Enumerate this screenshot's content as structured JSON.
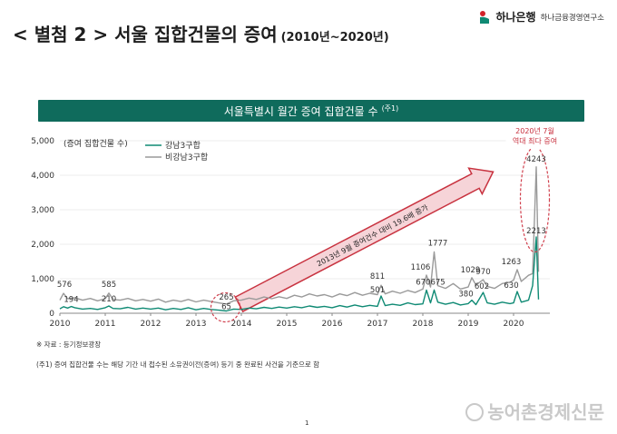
{
  "header": {
    "title": "< 별첨 2 > 서울 집합건물의 증여",
    "subtitle": "(2010년~2020년)",
    "logo_bank": "하나은행",
    "logo_institute": "하나금융경영연구소"
  },
  "banner": {
    "text": "서울특별시 월간 증여 집합건물 수",
    "note": "(주1)"
  },
  "chart_data": {
    "type": "line",
    "ylabel": "(증여 집합건물 수)",
    "ylim": [
      0,
      5000
    ],
    "yticks": [
      "0",
      "1,000",
      "2,000",
      "3,000",
      "4,000",
      "5,000"
    ],
    "xlim": [
      2010,
      2020.8
    ],
    "xticks": [
      "2010",
      "2011",
      "2012",
      "2013",
      "2014",
      "2015",
      "2016",
      "2017",
      "2018",
      "2019",
      "2020"
    ],
    "legend_position": "top-left",
    "series": [
      {
        "name": "강남3구합",
        "color": "#0f8a74",
        "points": [
          [
            2010.0,
            130
          ],
          [
            2010.08,
            190
          ],
          [
            2010.17,
            150
          ],
          [
            2010.25,
            194
          ],
          [
            2010.33,
            160
          ],
          [
            2010.5,
            120
          ],
          [
            2010.67,
            140
          ],
          [
            2010.83,
            110
          ],
          [
            2011.0,
            160
          ],
          [
            2011.08,
            210
          ],
          [
            2011.17,
            140
          ],
          [
            2011.33,
            130
          ],
          [
            2011.5,
            170
          ],
          [
            2011.67,
            120
          ],
          [
            2011.83,
            150
          ],
          [
            2012.0,
            120
          ],
          [
            2012.17,
            150
          ],
          [
            2012.33,
            100
          ],
          [
            2012.5,
            140
          ],
          [
            2012.67,
            110
          ],
          [
            2012.83,
            160
          ],
          [
            2013.0,
            100
          ],
          [
            2013.17,
            140
          ],
          [
            2013.33,
            110
          ],
          [
            2013.5,
            90
          ],
          [
            2013.67,
            65
          ],
          [
            2013.83,
            120
          ],
          [
            2014.0,
            110
          ],
          [
            2014.17,
            150
          ],
          [
            2014.33,
            130
          ],
          [
            2014.5,
            170
          ],
          [
            2014.67,
            140
          ],
          [
            2014.83,
            180
          ],
          [
            2015.0,
            150
          ],
          [
            2015.17,
            190
          ],
          [
            2015.33,
            160
          ],
          [
            2015.5,
            210
          ],
          [
            2015.67,
            170
          ],
          [
            2015.83,
            200
          ],
          [
            2016.0,
            160
          ],
          [
            2016.17,
            220
          ],
          [
            2016.33,
            180
          ],
          [
            2016.5,
            240
          ],
          [
            2016.67,
            190
          ],
          [
            2016.83,
            230
          ],
          [
            2017.0,
            200
          ],
          [
            2017.08,
            501
          ],
          [
            2017.17,
            220
          ],
          [
            2017.33,
            260
          ],
          [
            2017.5,
            230
          ],
          [
            2017.67,
            300
          ],
          [
            2017.83,
            250
          ],
          [
            2018.0,
            270
          ],
          [
            2018.08,
            670
          ],
          [
            2018.17,
            300
          ],
          [
            2018.25,
            675
          ],
          [
            2018.33,
            320
          ],
          [
            2018.5,
            260
          ],
          [
            2018.67,
            310
          ],
          [
            2018.83,
            240
          ],
          [
            2019.0,
            280
          ],
          [
            2019.08,
            380
          ],
          [
            2019.17,
            250
          ],
          [
            2019.33,
            602
          ],
          [
            2019.42,
            300
          ],
          [
            2019.58,
            260
          ],
          [
            2019.75,
            320
          ],
          [
            2019.92,
            280
          ],
          [
            2020.0,
            300
          ],
          [
            2020.08,
            630
          ],
          [
            2020.17,
            320
          ],
          [
            2020.33,
            380
          ],
          [
            2020.42,
            800
          ],
          [
            2020.5,
            2213
          ],
          [
            2020.55,
            400
          ]
        ]
      },
      {
        "name": "비강남3구합",
        "color": "#9a9a9a",
        "points": [
          [
            2010.0,
            380
          ],
          [
            2010.08,
            576
          ],
          [
            2010.17,
            420
          ],
          [
            2010.33,
            450
          ],
          [
            2010.5,
            380
          ],
          [
            2010.67,
            430
          ],
          [
            2010.83,
            360
          ],
          [
            2011.0,
            420
          ],
          [
            2011.08,
            585
          ],
          [
            2011.17,
            400
          ],
          [
            2011.33,
            380
          ],
          [
            2011.5,
            430
          ],
          [
            2011.67,
            360
          ],
          [
            2011.83,
            400
          ],
          [
            2012.0,
            350
          ],
          [
            2012.17,
            410
          ],
          [
            2012.33,
            320
          ],
          [
            2012.5,
            380
          ],
          [
            2012.67,
            340
          ],
          [
            2012.83,
            400
          ],
          [
            2013.0,
            330
          ],
          [
            2013.17,
            380
          ],
          [
            2013.33,
            340
          ],
          [
            2013.5,
            300
          ],
          [
            2013.67,
            265
          ],
          [
            2013.83,
            360
          ],
          [
            2014.0,
            380
          ],
          [
            2014.17,
            440
          ],
          [
            2014.33,
            400
          ],
          [
            2014.5,
            470
          ],
          [
            2014.67,
            420
          ],
          [
            2014.83,
            480
          ],
          [
            2015.0,
            430
          ],
          [
            2015.17,
            520
          ],
          [
            2015.33,
            470
          ],
          [
            2015.5,
            560
          ],
          [
            2015.67,
            500
          ],
          [
            2015.83,
            540
          ],
          [
            2016.0,
            470
          ],
          [
            2016.17,
            560
          ],
          [
            2016.33,
            510
          ],
          [
            2016.5,
            600
          ],
          [
            2016.67,
            520
          ],
          [
            2016.83,
            580
          ],
          [
            2017.0,
            540
          ],
          [
            2017.08,
            811
          ],
          [
            2017.17,
            560
          ],
          [
            2017.33,
            640
          ],
          [
            2017.5,
            580
          ],
          [
            2017.67,
            660
          ],
          [
            2017.83,
            600
          ],
          [
            2018.0,
            700
          ],
          [
            2018.08,
            1106
          ],
          [
            2018.17,
            760
          ],
          [
            2018.25,
            1777
          ],
          [
            2018.33,
            800
          ],
          [
            2018.5,
            720
          ],
          [
            2018.67,
            860
          ],
          [
            2018.83,
            700
          ],
          [
            2019.0,
            760
          ],
          [
            2019.08,
            1029
          ],
          [
            2019.17,
            820
          ],
          [
            2019.33,
            970
          ],
          [
            2019.42,
            780
          ],
          [
            2019.58,
            720
          ],
          [
            2019.75,
            860
          ],
          [
            2019.92,
            900
          ],
          [
            2020.0,
            960
          ],
          [
            2020.08,
            1263
          ],
          [
            2020.17,
            920
          ],
          [
            2020.33,
            1100
          ],
          [
            2020.42,
            1150
          ],
          [
            2020.5,
            4243
          ],
          [
            2020.55,
            1200
          ]
        ]
      }
    ],
    "labels": [
      {
        "x": 2010.1,
        "y": 576,
        "text": "576",
        "dy": -7
      },
      {
        "x": 2010.25,
        "y": 194,
        "text": "194",
        "dy": -5
      },
      {
        "x": 2011.08,
        "y": 585,
        "text": "585",
        "dy": -7
      },
      {
        "x": 2011.08,
        "y": 210,
        "text": "210",
        "dy": -5
      },
      {
        "x": 2013.67,
        "y": 265,
        "text": "265",
        "dy": -5
      },
      {
        "x": 2013.67,
        "y": 65,
        "text": "65",
        "dy": -2
      },
      {
        "x": 2017.0,
        "y": 811,
        "text": "811",
        "dy": -7
      },
      {
        "x": 2017.0,
        "y": 501,
        "text": "501",
        "dy": -4
      },
      {
        "x": 2017.95,
        "y": 1106,
        "text": "1106",
        "dy": -6
      },
      {
        "x": 2018.33,
        "y": 1777,
        "text": "1777",
        "dy": -7
      },
      {
        "x": 2018.17,
        "y": 670,
        "text": "670675",
        "dy": -6
      },
      {
        "x": 2019.05,
        "y": 1029,
        "text": "1029",
        "dy": -6
      },
      {
        "x": 2019.33,
        "y": 970,
        "text": "970",
        "dy": -6
      },
      {
        "x": 2018.95,
        "y": 380,
        "text": "380",
        "dy": -4
      },
      {
        "x": 2019.3,
        "y": 602,
        "text": "602",
        "dy": -4
      },
      {
        "x": 2019.95,
        "y": 1263,
        "text": "1263",
        "dy": -6
      },
      {
        "x": 2019.95,
        "y": 630,
        "text": "630",
        "dy": -4
      },
      {
        "x": 2020.5,
        "y": 4243,
        "text": "4243",
        "dy": -6
      },
      {
        "x": 2020.5,
        "y": 2213,
        "text": "2213",
        "dy": -4
      }
    ],
    "arrow_text": "2013년 9월 증여건수 대비 19.6배 증가",
    "peak_callout": [
      "2020년 7월",
      "역대 최다 증여"
    ]
  },
  "source_note": "※ 자료 : 등기정보광장",
  "footnote": "(주1) 증여 집합건물 수는 해당 기간 내 접수된 소유권이전(증여) 등기 중 완료된 사건을 기준으로 함",
  "page_number": "1",
  "watermark": "농어촌경제신문"
}
